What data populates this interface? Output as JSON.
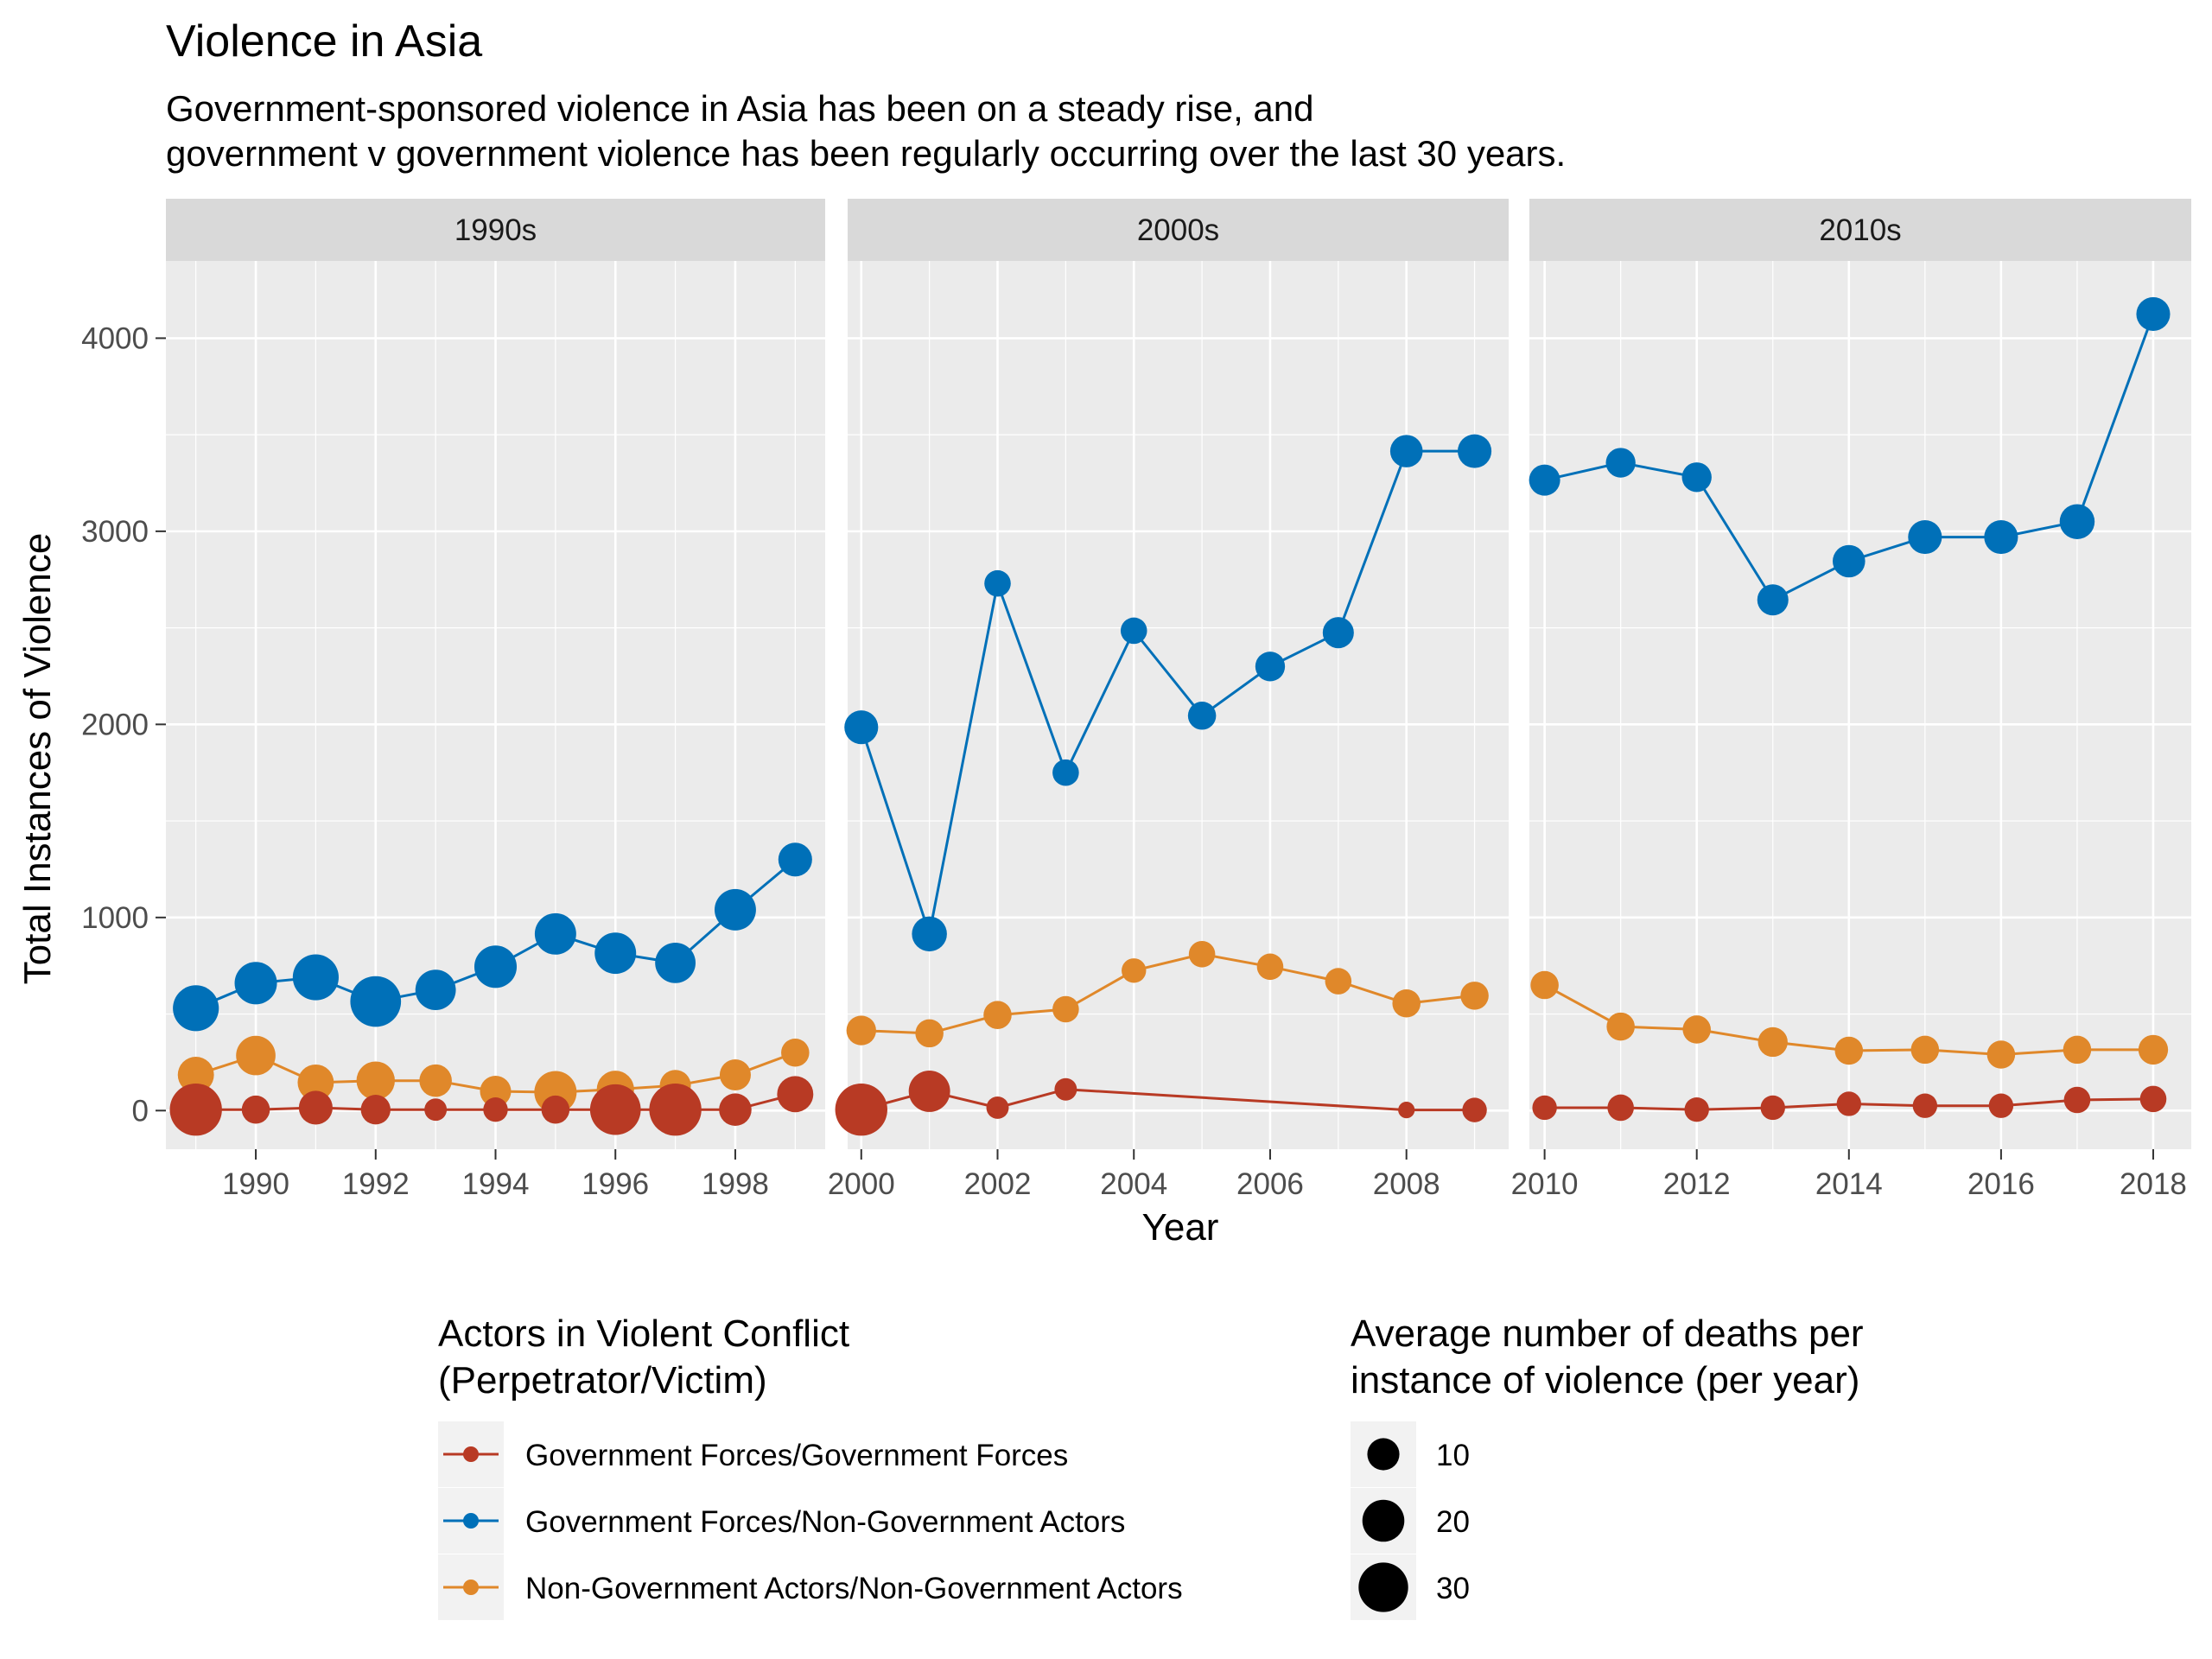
{
  "title": "Violence in Asia",
  "subtitle_lines": [
    "Government-sponsored violence in Asia has been on a steady rise, and",
    "government v government violence has been regularly occurring over the last 30 years."
  ],
  "chart_data": {
    "type": "line",
    "xlabel": "Year",
    "ylabel": "Total Instances of Violence",
    "ylim": [
      -200,
      4400
    ],
    "yticks": [
      0,
      1000,
      2000,
      3000,
      4000
    ],
    "grid": true,
    "facets": [
      {
        "label": "1990s",
        "xlim": [
          1988.5,
          1999.5
        ],
        "xticks": [
          1990,
          1992,
          1994,
          1996,
          1998
        ]
      },
      {
        "label": "2000s",
        "xlim": [
          1999.8,
          2009.5
        ],
        "xticks": [
          2000,
          2002,
          2004,
          2006,
          2008
        ]
      },
      {
        "label": "2010s",
        "xlim": [
          2009.8,
          2018.5
        ],
        "xticks": [
          2010,
          2012,
          2014,
          2016,
          2018
        ]
      }
    ],
    "colors": {
      "gov_gov": "#B83A24",
      "gov_nongov": "#0070B8",
      "nongov_nongov": "#E0882A"
    },
    "legend_color": {
      "title_lines": [
        "Actors in Violent Conflict",
        "(Perpetrator/Victim)"
      ],
      "entries": [
        {
          "key": "gov_gov",
          "label": "Government Forces/Government Forces"
        },
        {
          "key": "gov_nongov",
          "label": "Government Forces/Non-Government Actors"
        },
        {
          "key": "nongov_nongov",
          "label": "Non-Government Actors/Non-Government Actors"
        }
      ]
    },
    "legend_size": {
      "title_lines": [
        "Average number of deaths per",
        "instance of violence (per year)"
      ],
      "entries": [
        {
          "value": 10,
          "label": "10"
        },
        {
          "value": 20,
          "label": "20"
        },
        {
          "value": 30,
          "label": "30"
        }
      ]
    },
    "series": [
      {
        "key": "gov_nongov",
        "name": "Government Forces/Non-Government Actors",
        "points": [
          {
            "x": 1989,
            "y": 530,
            "s": 22
          },
          {
            "x": 1990,
            "y": 660,
            "s": 18
          },
          {
            "x": 1991,
            "y": 690,
            "s": 22
          },
          {
            "x": 1992,
            "y": 565,
            "s": 28
          },
          {
            "x": 1993,
            "y": 625,
            "s": 16
          },
          {
            "x": 1994,
            "y": 745,
            "s": 18
          },
          {
            "x": 1995,
            "y": 915,
            "s": 17
          },
          {
            "x": 1996,
            "y": 815,
            "s": 17
          },
          {
            "x": 1997,
            "y": 765,
            "s": 16
          },
          {
            "x": 1998,
            "y": 1040,
            "s": 17
          },
          {
            "x": 1999,
            "y": 1300,
            "s": 10
          },
          {
            "x": 2000,
            "y": 1985,
            "s": 10
          },
          {
            "x": 2001,
            "y": 915,
            "s": 11
          },
          {
            "x": 2002,
            "y": 2730,
            "s": 5
          },
          {
            "x": 2003,
            "y": 1750,
            "s": 5
          },
          {
            "x": 2004,
            "y": 2485,
            "s": 5
          },
          {
            "x": 2005,
            "y": 2045,
            "s": 6
          },
          {
            "x": 2006,
            "y": 2300,
            "s": 7
          },
          {
            "x": 2007,
            "y": 2475,
            "s": 8
          },
          {
            "x": 2008,
            "y": 3415,
            "s": 9
          },
          {
            "x": 2009,
            "y": 3415,
            "s": 10
          },
          {
            "x": 2010,
            "y": 3265,
            "s": 8
          },
          {
            "x": 2011,
            "y": 3355,
            "s": 7
          },
          {
            "x": 2012,
            "y": 3280,
            "s": 7
          },
          {
            "x": 2013,
            "y": 2645,
            "s": 8
          },
          {
            "x": 2014,
            "y": 2845,
            "s": 9
          },
          {
            "x": 2015,
            "y": 2970,
            "s": 10
          },
          {
            "x": 2016,
            "y": 2970,
            "s": 10
          },
          {
            "x": 2017,
            "y": 3050,
            "s": 11
          },
          {
            "x": 2018,
            "y": 4125,
            "s": 10
          }
        ]
      },
      {
        "key": "nongov_nongov",
        "name": "Non-Government Actors/Non-Government Actors",
        "points": [
          {
            "x": 1989,
            "y": 185,
            "s": 12
          },
          {
            "x": 1990,
            "y": 285,
            "s": 15
          },
          {
            "x": 1991,
            "y": 145,
            "s": 12
          },
          {
            "x": 1992,
            "y": 155,
            "s": 14
          },
          {
            "x": 1993,
            "y": 155,
            "s": 9
          },
          {
            "x": 1994,
            "y": 100,
            "s": 8
          },
          {
            "x": 1995,
            "y": 95,
            "s": 18
          },
          {
            "x": 1996,
            "y": 110,
            "s": 13
          },
          {
            "x": 1997,
            "y": 130,
            "s": 8
          },
          {
            "x": 1998,
            "y": 185,
            "s": 8
          },
          {
            "x": 1999,
            "y": 300,
            "s": 6
          },
          {
            "x": 2000,
            "y": 415,
            "s": 7
          },
          {
            "x": 2001,
            "y": 400,
            "s": 6
          },
          {
            "x": 2002,
            "y": 495,
            "s": 6
          },
          {
            "x": 2003,
            "y": 525,
            "s": 5
          },
          {
            "x": 2004,
            "y": 725,
            "s": 4
          },
          {
            "x": 2005,
            "y": 810,
            "s": 5
          },
          {
            "x": 2006,
            "y": 745,
            "s": 5
          },
          {
            "x": 2007,
            "y": 670,
            "s": 5
          },
          {
            "x": 2008,
            "y": 555,
            "s": 6
          },
          {
            "x": 2009,
            "y": 595,
            "s": 6
          },
          {
            "x": 2010,
            "y": 650,
            "s": 6
          },
          {
            "x": 2011,
            "y": 435,
            "s": 6
          },
          {
            "x": 2012,
            "y": 420,
            "s": 6
          },
          {
            "x": 2013,
            "y": 355,
            "s": 7
          },
          {
            "x": 2014,
            "y": 310,
            "s": 6
          },
          {
            "x": 2015,
            "y": 315,
            "s": 6
          },
          {
            "x": 2016,
            "y": 290,
            "s": 6
          },
          {
            "x": 2017,
            "y": 315,
            "s": 6
          },
          {
            "x": 2018,
            "y": 315,
            "s": 7
          }
        ]
      },
      {
        "key": "gov_gov",
        "name": "Government Forces/Government Forces",
        "points": [
          {
            "x": 1989,
            "y": 5,
            "s": 30
          },
          {
            "x": 1990,
            "y": 5,
            "s": 6
          },
          {
            "x": 1991,
            "y": 15,
            "s": 10
          },
          {
            "x": 1992,
            "y": 5,
            "s": 7
          },
          {
            "x": 1993,
            "y": 5,
            "s": 3
          },
          {
            "x": 1994,
            "y": 5,
            "s": 4
          },
          {
            "x": 1995,
            "y": 5,
            "s": 6
          },
          {
            "x": 1996,
            "y": 5,
            "s": 28
          },
          {
            "x": 1997,
            "y": 5,
            "s": 30
          },
          {
            "x": 1998,
            "y": 5,
            "s": 9
          },
          {
            "x": 1999,
            "y": 85,
            "s": 12
          },
          {
            "x": 2000,
            "y": 5,
            "s": 30
          },
          {
            "x": 2001,
            "y": 100,
            "s": 17
          },
          {
            "x": 2002,
            "y": 15,
            "s": 3
          },
          {
            "x": 2003,
            "y": 110,
            "s": 3
          },
          {
            "x": 2008,
            "y": 3,
            "s": 1
          },
          {
            "x": 2009,
            "y": 3,
            "s": 4
          },
          {
            "x": 2010,
            "y": 15,
            "s": 4
          },
          {
            "x": 2011,
            "y": 15,
            "s": 5
          },
          {
            "x": 2012,
            "y": 5,
            "s": 4
          },
          {
            "x": 2013,
            "y": 15,
            "s": 4
          },
          {
            "x": 2014,
            "y": 35,
            "s": 4
          },
          {
            "x": 2015,
            "y": 25,
            "s": 4
          },
          {
            "x": 2016,
            "y": 25,
            "s": 4
          },
          {
            "x": 2017,
            "y": 55,
            "s": 5
          },
          {
            "x": 2018,
            "y": 60,
            "s": 5
          }
        ]
      }
    ]
  }
}
